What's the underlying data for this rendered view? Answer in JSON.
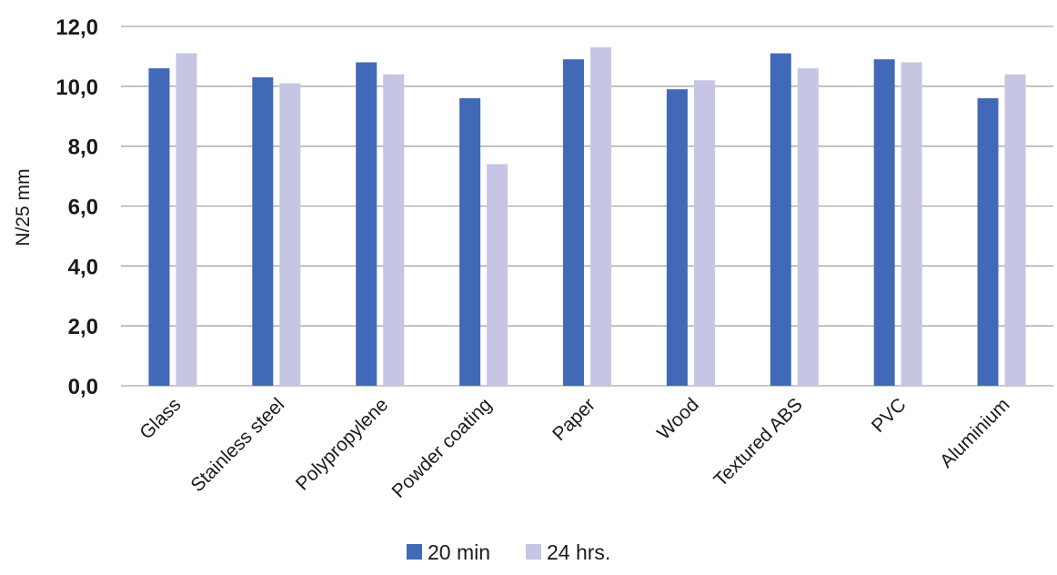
{
  "chart_data": {
    "type": "bar",
    "title": "",
    "xlabel": "",
    "ylabel": "N/25 mm",
    "ylim": [
      0,
      12
    ],
    "yticks": [
      "0,0",
      "2,0",
      "4,0",
      "6,0",
      "8,0",
      "10,0",
      "12,0"
    ],
    "grid": true,
    "legend_position": "bottom",
    "categories": [
      "Glass",
      "Stainless steel",
      "Polypropylene",
      "Powder coating",
      "Paper",
      "Wood",
      "Textured ABS",
      "PVC",
      "Aluminium"
    ],
    "series": [
      {
        "name": "20 min",
        "color": "#4169b8",
        "values": [
          10.6,
          10.3,
          10.8,
          9.6,
          10.9,
          9.9,
          11.1,
          10.9,
          9.6
        ]
      },
      {
        "name": "24 hrs.",
        "color": "#c6c5e3",
        "values": [
          11.1,
          10.1,
          10.4,
          7.4,
          11.3,
          10.2,
          10.6,
          10.8,
          10.4
        ]
      }
    ]
  }
}
